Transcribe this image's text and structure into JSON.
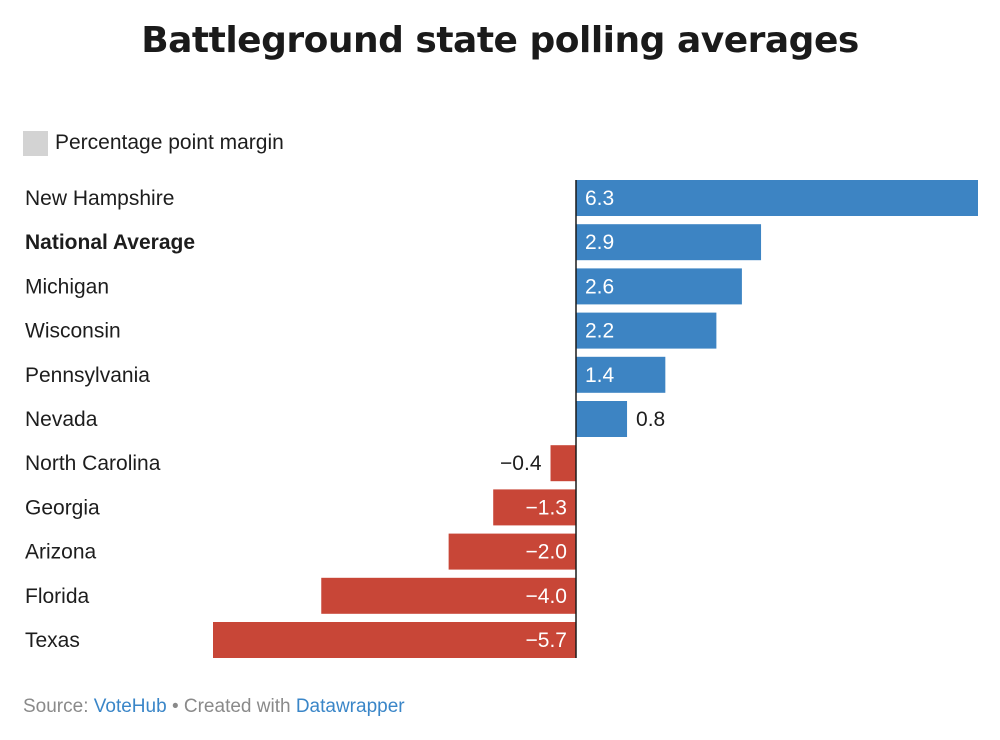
{
  "chart_data": {
    "type": "bar",
    "orientation": "horizontal",
    "title": "Battleground state polling averages",
    "legend": {
      "label": "Percentage point margin",
      "color": "#d3d3d3"
    },
    "categories": [
      "New Hampshire",
      "National Average",
      "Michigan",
      "Wisconsin",
      "Pennsylvania",
      "Nevada",
      "North Carolina",
      "Georgia",
      "Arizona",
      "Florida",
      "Texas"
    ],
    "values": [
      6.3,
      2.9,
      2.6,
      2.2,
      1.4,
      0.8,
      -0.4,
      -1.3,
      -2.0,
      -4.0,
      -5.7
    ],
    "value_labels": [
      "6.3",
      "2.9",
      "2.6",
      "2.2",
      "1.4",
      "0.8",
      "−0.4",
      "−1.3",
      "−2.0",
      "−4.0",
      "−5.7"
    ],
    "bold_categories": [
      "National Average"
    ],
    "colors": {
      "positive": "#3d84c3",
      "negative": "#c84637",
      "axis": "#1a1a1a"
    },
    "xlim": [
      -5.7,
      6.3
    ]
  },
  "footer": {
    "source_prefix": "Source: ",
    "source_link": "VoteHub",
    "separator": " • Created with ",
    "tool_link": "Datawrapper"
  }
}
